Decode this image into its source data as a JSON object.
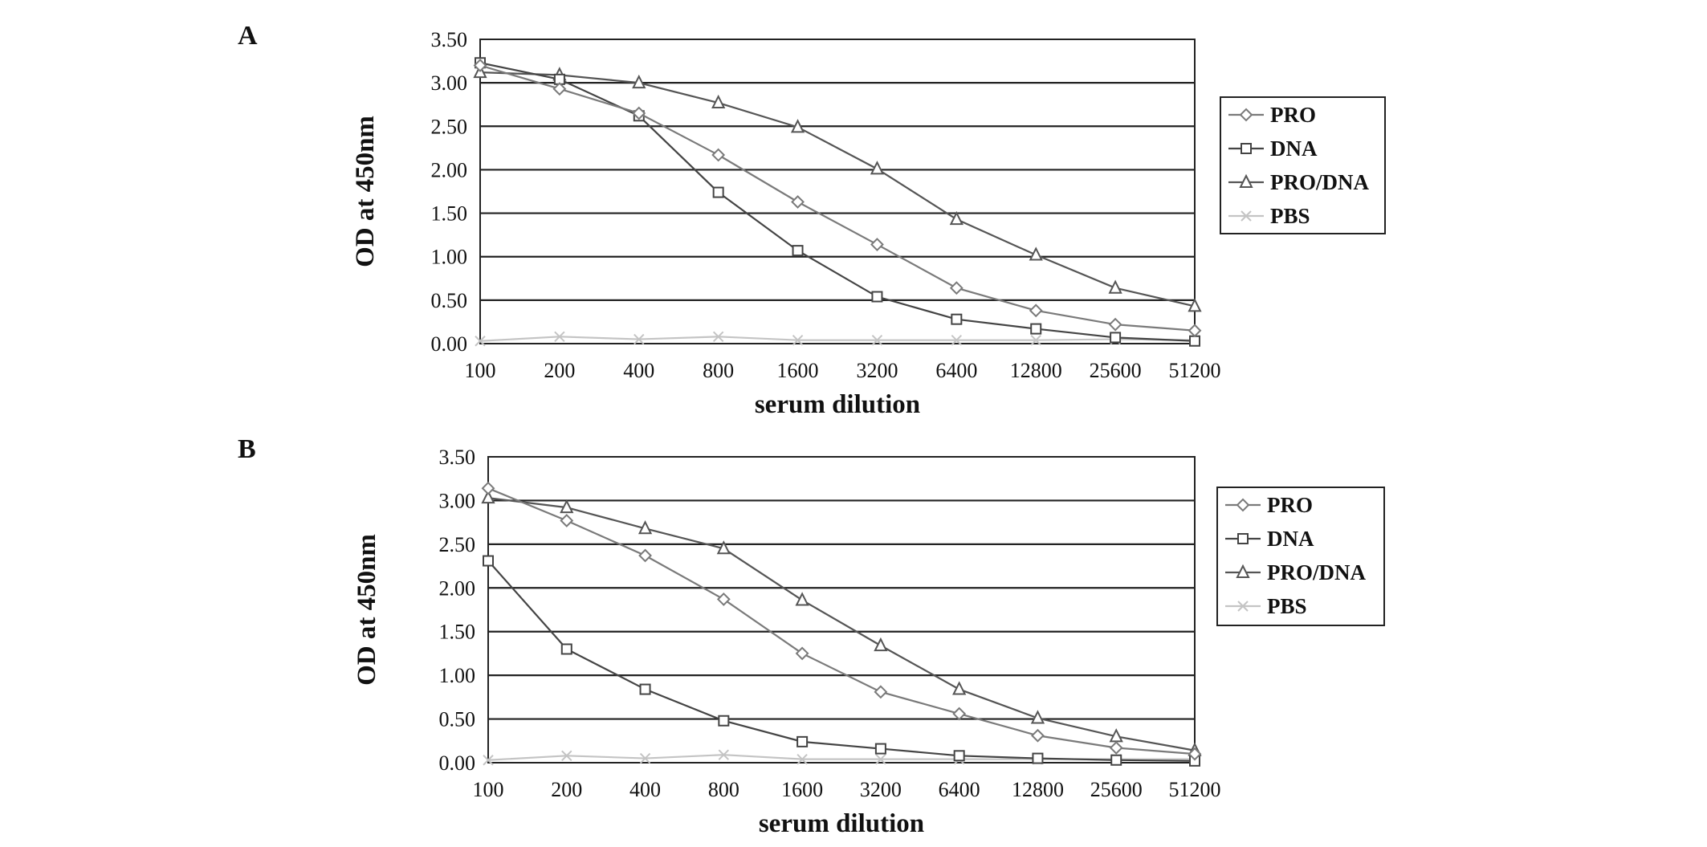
{
  "chart_data": [
    {
      "panel": "A",
      "type": "line",
      "xlabel": "serum dilution",
      "ylabel": "OD at 450nm",
      "categories": [
        "100",
        "200",
        "400",
        "800",
        "1600",
        "3200",
        "6400",
        "12800",
        "25600",
        "51200"
      ],
      "ylim": [
        0,
        3.5
      ],
      "yticks": [
        "0.00",
        "0.50",
        "1.00",
        "1.50",
        "2.00",
        "2.50",
        "3.00",
        "3.50"
      ],
      "grid": "horizontal",
      "legend_position": "right",
      "series": [
        {
          "name": "PRO",
          "marker": "diamond",
          "color": "#7a7a7a",
          "values": [
            3.2,
            2.93,
            2.65,
            2.17,
            1.63,
            1.14,
            0.64,
            0.38,
            0.22,
            0.15
          ]
        },
        {
          "name": "DNA",
          "marker": "square",
          "color": "#444444",
          "values": [
            3.23,
            3.04,
            2.62,
            1.74,
            1.07,
            0.54,
            0.28,
            0.17,
            0.07,
            0.03
          ]
        },
        {
          "name": "PRO/DNA",
          "marker": "triangle",
          "color": "#555555",
          "values": [
            3.12,
            3.09,
            3.0,
            2.77,
            2.49,
            2.01,
            1.43,
            1.02,
            0.64,
            0.43
          ]
        },
        {
          "name": "PBS",
          "marker": "cross",
          "color": "#c4c4c4",
          "values": [
            0.03,
            0.08,
            0.05,
            0.08,
            0.04,
            0.04,
            0.04,
            0.04,
            0.05,
            0.04
          ]
        }
      ]
    },
    {
      "panel": "B",
      "type": "line",
      "xlabel": "serum dilution",
      "ylabel": "OD at 450nm",
      "categories": [
        "100",
        "200",
        "400",
        "800",
        "1600",
        "3200",
        "6400",
        "12800",
        "25600",
        "51200"
      ],
      "ylim": [
        0,
        3.5
      ],
      "yticks": [
        "0.00",
        "0.50",
        "1.00",
        "1.50",
        "2.00",
        "2.50",
        "3.00",
        "3.50"
      ],
      "grid": "horizontal",
      "legend_position": "right",
      "series": [
        {
          "name": "PRO",
          "marker": "diamond",
          "color": "#7a7a7a",
          "values": [
            3.14,
            2.77,
            2.37,
            1.87,
            1.25,
            0.81,
            0.56,
            0.31,
            0.17,
            0.1
          ]
        },
        {
          "name": "DNA",
          "marker": "square",
          "color": "#444444",
          "values": [
            2.31,
            1.3,
            0.84,
            0.48,
            0.24,
            0.16,
            0.08,
            0.05,
            0.03,
            0.02
          ]
        },
        {
          "name": "PRO/DNA",
          "marker": "triangle",
          "color": "#555555",
          "values": [
            3.03,
            2.92,
            2.68,
            2.45,
            1.86,
            1.34,
            0.84,
            0.51,
            0.3,
            0.14
          ]
        },
        {
          "name": "PBS",
          "marker": "cross",
          "color": "#c4c4c4",
          "values": [
            0.03,
            0.08,
            0.05,
            0.09,
            0.04,
            0.04,
            0.04,
            0.04,
            0.04,
            0.04
          ]
        }
      ]
    }
  ]
}
